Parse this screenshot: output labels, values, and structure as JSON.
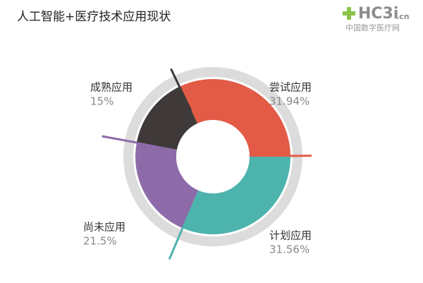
{
  "logo": {
    "name": "HC3i",
    "suffix": ".cn",
    "tagline": "中国数字医疗网"
  },
  "chart_data": {
    "type": "donut",
    "title": "人工智能+医疗技术应用现状",
    "categories": [
      "尝试应用",
      "计划应用",
      "尚未应用",
      "成熟应用"
    ],
    "values": [
      31.94,
      31.56,
      21.5,
      15
    ],
    "value_labels": [
      "31.94%",
      "31.56%",
      "21.5%",
      "15%"
    ],
    "colors": [
      "#e35b46",
      "#4db3ad",
      "#8d6ba9",
      "#3f3a39"
    ]
  }
}
